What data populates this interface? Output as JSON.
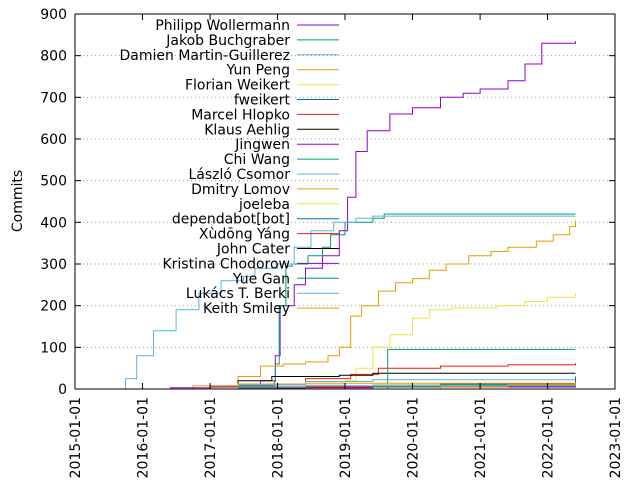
{
  "chart_data": {
    "type": "line",
    "title": "",
    "xlabel": "",
    "ylabel": "Commits",
    "ylim": [
      0,
      900
    ],
    "y_ticks": [
      0,
      100,
      200,
      300,
      400,
      500,
      600,
      700,
      800,
      900
    ],
    "x_range": [
      "2015-01-01",
      "2023-01-01"
    ],
    "x_ticks": [
      "2015-01-01",
      "2016-01-01",
      "2017-01-01",
      "2018-01-01",
      "2019-01-01",
      "2020-01-01",
      "2021-01-01",
      "2022-01-01",
      "2023-01-01"
    ],
    "grid": "horizontal dotted at y ticks",
    "legend_position": "top-left",
    "series": [
      {
        "name": "Philipp Wollermann",
        "color": "#9400d3",
        "points": [
          [
            "2016-02-01",
            0
          ],
          [
            "2017-01-01",
            5
          ],
          [
            "2017-06-01",
            12
          ],
          [
            "2017-10-01",
            20
          ],
          [
            "2017-12-20",
            80
          ],
          [
            "2018-01-15",
            200
          ],
          [
            "2018-04-01",
            250
          ],
          [
            "2018-06-01",
            290
          ],
          [
            "2018-09-01",
            320
          ],
          [
            "2018-12-01",
            380
          ],
          [
            "2019-01-15",
            460
          ],
          [
            "2019-03-01",
            570
          ],
          [
            "2019-05-01",
            620
          ],
          [
            "2019-09-01",
            660
          ],
          [
            "2020-01-01",
            675
          ],
          [
            "2020-06-01",
            700
          ],
          [
            "2020-10-01",
            710
          ],
          [
            "2021-01-01",
            720
          ],
          [
            "2021-06-01",
            740
          ],
          [
            "2021-09-01",
            780
          ],
          [
            "2021-12-01",
            830
          ],
          [
            "2022-06-01",
            835
          ]
        ]
      },
      {
        "name": "Jakob Buchgraber",
        "color": "#009e73",
        "points": [
          [
            "2016-02-01",
            0
          ],
          [
            "2017-06-01",
            8
          ],
          [
            "2017-12-15",
            18
          ],
          [
            "2017-12-20",
            60
          ],
          [
            "2018-01-10",
            200
          ],
          [
            "2018-02-15",
            295
          ],
          [
            "2018-03-20",
            300
          ],
          [
            "2018-06-15",
            320
          ],
          [
            "2018-09-01",
            340
          ],
          [
            "2018-10-15",
            370
          ],
          [
            "2019-01-01",
            400
          ],
          [
            "2019-06-01",
            410
          ],
          [
            "2019-08-01",
            420
          ],
          [
            "2022-06-01",
            420
          ]
        ]
      },
      {
        "name": "Damien Martin-Guillerez",
        "color": "#56b4e9",
        "points": [
          [
            "2015-09-01",
            0
          ],
          [
            "2015-10-01",
            25
          ],
          [
            "2015-12-01",
            80
          ],
          [
            "2016-03-01",
            140
          ],
          [
            "2016-07-01",
            190
          ],
          [
            "2016-11-01",
            230
          ],
          [
            "2017-03-01",
            260
          ],
          [
            "2017-07-01",
            270
          ],
          [
            "2017-09-01",
            290
          ],
          [
            "2018-01-01",
            300
          ],
          [
            "2018-04-01",
            340
          ],
          [
            "2018-07-01",
            380
          ],
          [
            "2018-11-01",
            400
          ],
          [
            "2019-03-01",
            410
          ],
          [
            "2019-06-01",
            415
          ],
          [
            "2022-06-01",
            415
          ]
        ]
      },
      {
        "name": "Yun Peng",
        "color": "#e69f00",
        "points": [
          [
            "2017-01-01",
            0
          ],
          [
            "2017-02-01",
            5
          ],
          [
            "2017-06-01",
            30
          ],
          [
            "2017-10-01",
            55
          ],
          [
            "2018-02-01",
            60
          ],
          [
            "2018-06-01",
            65
          ],
          [
            "2018-10-01",
            80
          ],
          [
            "2018-12-01",
            100
          ],
          [
            "2019-02-01",
            175
          ],
          [
            "2019-04-01",
            200
          ],
          [
            "2019-07-01",
            235
          ],
          [
            "2019-10-01",
            255
          ],
          [
            "2020-01-01",
            265
          ],
          [
            "2020-04-01",
            285
          ],
          [
            "2020-07-01",
            300
          ],
          [
            "2020-11-01",
            320
          ],
          [
            "2021-03-01",
            330
          ],
          [
            "2021-06-01",
            340
          ],
          [
            "2021-11-01",
            355
          ],
          [
            "2022-02-01",
            370
          ],
          [
            "2022-05-01",
            390
          ],
          [
            "2022-06-01",
            405
          ]
        ]
      },
      {
        "name": "Florian Weikert",
        "color": "#f0e442",
        "points": [
          [
            "2016-02-01",
            0
          ],
          [
            "2017-01-01",
            3
          ],
          [
            "2018-01-01",
            10
          ],
          [
            "2019-01-01",
            20
          ],
          [
            "2019-03-01",
            50
          ],
          [
            "2019-06-01",
            100
          ],
          [
            "2019-09-01",
            130
          ],
          [
            "2020-01-01",
            170
          ],
          [
            "2020-04-01",
            190
          ],
          [
            "2020-08-01",
            195
          ],
          [
            "2021-04-01",
            200
          ],
          [
            "2021-09-01",
            210
          ],
          [
            "2022-01-01",
            220
          ],
          [
            "2022-06-01",
            230
          ]
        ]
      },
      {
        "name": "fweikert",
        "color": "#0072b2",
        "points": [
          [
            "2019-09-01",
            0
          ],
          [
            "2020-01-01",
            5
          ],
          [
            "2021-01-01",
            10
          ],
          [
            "2022-06-01",
            15
          ]
        ]
      },
      {
        "name": "Marcel Hlopko",
        "color": "#e51e10",
        "points": [
          [
            "2016-06-01",
            0
          ],
          [
            "2017-06-01",
            10
          ],
          [
            "2018-06-01",
            25
          ],
          [
            "2019-02-01",
            35
          ],
          [
            "2019-07-01",
            50
          ],
          [
            "2020-06-01",
            55
          ],
          [
            "2021-06-01",
            58
          ],
          [
            "2022-06-01",
            62
          ]
        ]
      },
      {
        "name": "Klaus Aehlig",
        "color": "#000000",
        "points": [
          [
            "2016-06-01",
            0
          ],
          [
            "2017-06-01",
            20
          ],
          [
            "2017-12-01",
            30
          ],
          [
            "2018-12-01",
            33
          ],
          [
            "2019-06-01",
            38
          ],
          [
            "2022-06-01",
            38
          ]
        ]
      },
      {
        "name": "Jingwen",
        "color": "#9400d3",
        "points": [
          [
            "2017-06-01",
            0
          ],
          [
            "2018-06-01",
            5
          ],
          [
            "2019-06-01",
            10
          ],
          [
            "2020-06-01",
            12
          ],
          [
            "2022-06-01",
            15
          ]
        ]
      },
      {
        "name": "Chi Wang",
        "color": "#009e73",
        "points": [
          [
            "2019-08-10",
            0
          ],
          [
            "2019-08-20",
            95
          ],
          [
            "2022-06-01",
            95
          ]
        ]
      },
      {
        "name": "László Csomor",
        "color": "#56b4e9",
        "points": [
          [
            "2016-06-01",
            0
          ],
          [
            "2017-06-01",
            10
          ],
          [
            "2018-06-01",
            18
          ],
          [
            "2019-06-01",
            22
          ],
          [
            "2022-06-01",
            22
          ]
        ]
      },
      {
        "name": "Dmitry Lomov",
        "color": "#e69f00",
        "points": [
          [
            "2016-03-01",
            0
          ],
          [
            "2016-10-01",
            8
          ],
          [
            "2017-06-01",
            12
          ],
          [
            "2018-06-01",
            14
          ],
          [
            "2022-06-01",
            14
          ]
        ]
      },
      {
        "name": "joeleba",
        "color": "#f0e442",
        "points": [
          [
            "2017-06-01",
            0
          ],
          [
            "2018-06-01",
            6
          ],
          [
            "2019-06-01",
            10
          ],
          [
            "2022-06-01",
            12
          ]
        ]
      },
      {
        "name": "dependabot[bot]",
        "color": "#0072b2",
        "points": [
          [
            "2020-01-01",
            0
          ],
          [
            "2021-01-01",
            10
          ],
          [
            "2022-06-01",
            30
          ]
        ]
      },
      {
        "name": "Xùdōng Yáng",
        "color": "#e51e10",
        "points": [
          [
            "2017-01-01",
            0
          ],
          [
            "2018-01-01",
            3
          ],
          [
            "2019-06-01",
            6
          ],
          [
            "2022-06-01",
            8
          ]
        ]
      },
      {
        "name": "John Cater",
        "color": "#000000",
        "points": [
          [
            "2016-06-01",
            0
          ],
          [
            "2017-06-01",
            3
          ],
          [
            "2018-06-01",
            5
          ],
          [
            "2022-06-01",
            6
          ]
        ]
      },
      {
        "name": "Kristina Chodorow",
        "color": "#9400d3",
        "points": [
          [
            "2016-02-01",
            0
          ],
          [
            "2016-06-01",
            3
          ],
          [
            "2017-01-01",
            5
          ],
          [
            "2022-06-01",
            5
          ]
        ]
      },
      {
        "name": "Yue Gan",
        "color": "#009e73",
        "points": [
          [
            "2018-06-01",
            0
          ],
          [
            "2019-06-01",
            5
          ],
          [
            "2020-06-01",
            10
          ],
          [
            "2022-06-01",
            14
          ]
        ]
      },
      {
        "name": "Lukács T. Berki",
        "color": "#56b4e9",
        "points": [
          [
            "2016-06-01",
            0
          ],
          [
            "2017-06-01",
            4
          ],
          [
            "2018-06-01",
            8
          ],
          [
            "2022-06-01",
            10
          ]
        ]
      },
      {
        "name": "Keith Smiley",
        "color": "#e69f00",
        "points": [
          [
            "2019-06-01",
            0
          ],
          [
            "2020-06-01",
            5
          ],
          [
            "2021-06-01",
            10
          ],
          [
            "2022-06-01",
            16
          ]
        ]
      }
    ]
  }
}
